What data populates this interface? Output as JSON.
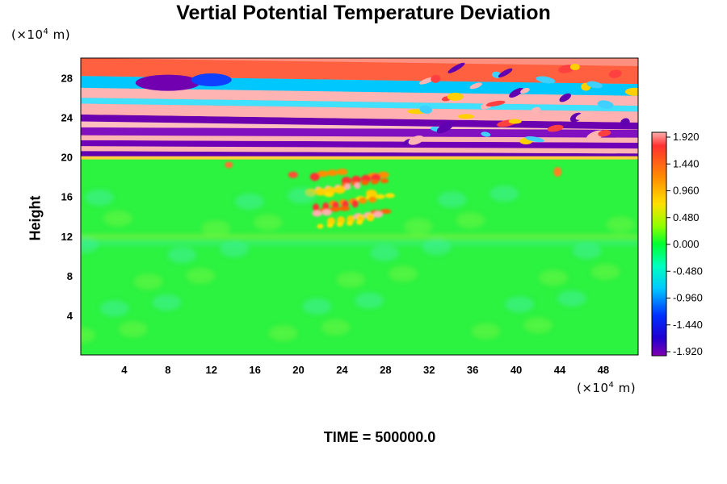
{
  "chart_data": {
    "type": "heatmap",
    "title": "Vertial Potential Temperature Deviation",
    "xlabel": "",
    "ylabel": "Height",
    "x_unit_prefix": "(×10",
    "x_unit_exp": "4",
    "x_unit_suffix": " m)",
    "y_unit_prefix": "(×10",
    "y_unit_exp": "4",
    "y_unit_suffix": " m)",
    "x_ticks": [
      "4",
      "8",
      "12",
      "16",
      "20",
      "24",
      "28",
      "32",
      "36",
      "40",
      "44",
      "48"
    ],
    "x_tick_values": [
      4,
      8,
      12,
      16,
      20,
      24,
      28,
      32,
      36,
      40,
      44,
      48
    ],
    "y_ticks": [
      "4",
      "8",
      "12",
      "16",
      "20",
      "24",
      "28"
    ],
    "y_tick_values": [
      4,
      8,
      12,
      16,
      20,
      24,
      28
    ],
    "xlim": [
      0,
      51.2
    ],
    "ylim": [
      0,
      30
    ],
    "colorbar": {
      "labels": [
        "1.920",
        "1.440",
        "0.960",
        "0.480",
        "0.000",
        "-0.480",
        "-0.960",
        "-1.440",
        "-1.920"
      ],
      "values": [
        1.92,
        1.44,
        0.96,
        0.48,
        0.0,
        -0.48,
        -0.96,
        -1.44,
        -1.92
      ],
      "range": [
        -1.92,
        1.92
      ]
    },
    "features": [
      {
        "name": "lower-troposphere",
        "y_range": [
          0,
          20
        ],
        "value": 0.0
      },
      {
        "name": "convective-plume",
        "x_center": 24,
        "y_center": 16.5,
        "value": 1.6
      },
      {
        "name": "stratospheric-bands",
        "y_range": [
          20,
          30
        ],
        "value_range": [
          -1.92,
          1.92
        ]
      }
    ],
    "footer": "TIME = 500000.0"
  }
}
